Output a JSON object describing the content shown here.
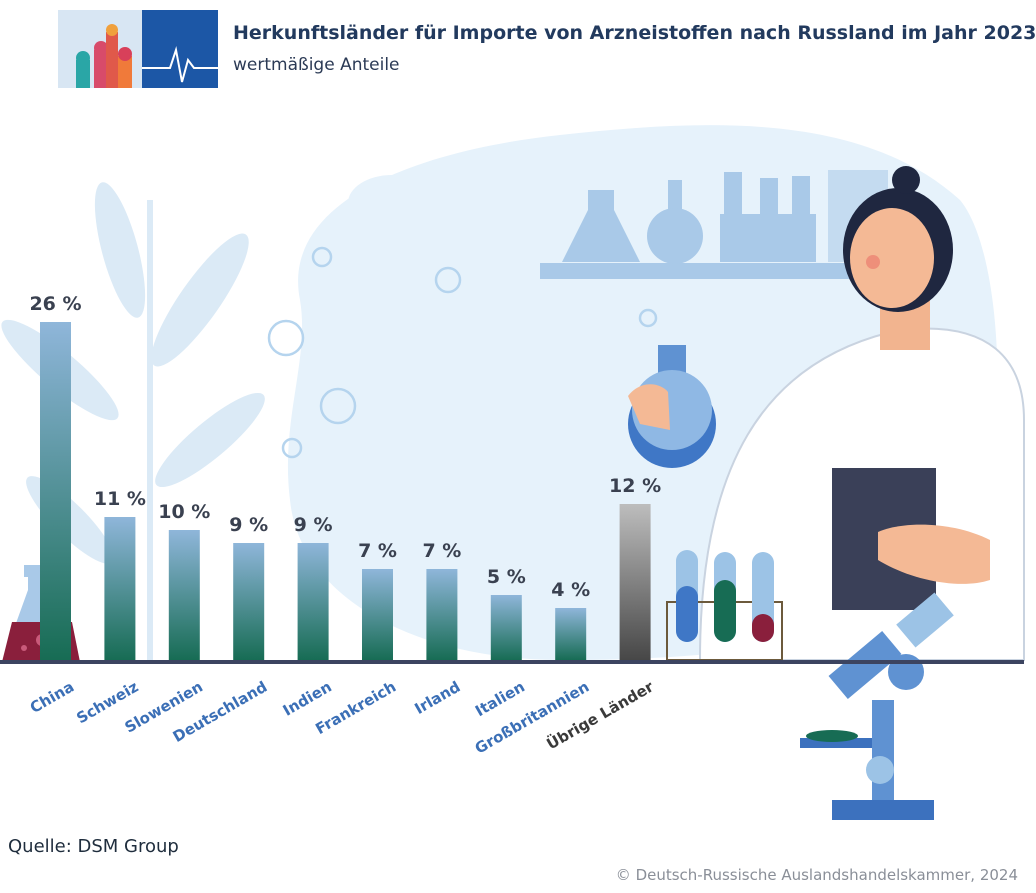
{
  "header": {
    "title": "Herkunftsländer für Importe von Arzneistoffen nach Russland im Jahr 2023",
    "subtitle": "wertmäßige Anteile",
    "logo_icon": "kremlin-heartbeat-logo"
  },
  "footer": {
    "source": "Quelle: DSM Group",
    "copyright": "© Deutsch-Russische Auslandshandelskammer, 2024"
  },
  "chart_data": {
    "type": "bar",
    "title": "Herkunftsländer für Importe von Arzneistoffen nach Russland im Jahr 2023",
    "subtitle": "wertmäßige Anteile",
    "categories": [
      "China",
      "Schweiz",
      "Slowenien",
      "Deutschland",
      "Indien",
      "Frankreich",
      "Irland",
      "Italien",
      "Großbritannien",
      "Übrige Länder"
    ],
    "values": [
      26,
      11,
      10,
      9,
      9,
      7,
      7,
      5,
      4,
      12
    ],
    "value_labels": [
      "26 %",
      "11 %",
      "10 %",
      "9 %",
      "9 %",
      "7 %",
      "7 %",
      "5 %",
      "4 %",
      "12 %"
    ],
    "unit": "%",
    "xlabel": "",
    "ylabel": "",
    "ylim": [
      0,
      26
    ],
    "grid": false,
    "colors": {
      "bar_top": "#8fb6da",
      "bar_bottom": "#176c54",
      "other_top": "#b9b9b9",
      "other_bottom": "#4a4a4a",
      "category_label": "#3b6fb6",
      "other_label": "#3a3a3a",
      "value_label": "#3a4150",
      "baseline": "#3c4460"
    }
  }
}
